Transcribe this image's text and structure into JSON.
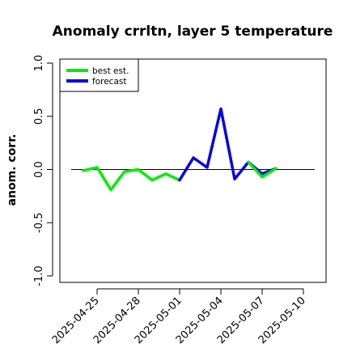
{
  "chart_data": {
    "type": "line",
    "title": "Anomaly crrltn, layer 5 temperature",
    "xlabel": "",
    "ylabel": "anom. corr.",
    "ylim": [
      -1.0,
      1.0
    ],
    "yticks": [
      "-1.0",
      "-0.5",
      "0.0",
      "0.5",
      "1.0"
    ],
    "ytick_values": [
      -1.0,
      -0.5,
      0.0,
      0.5,
      1.0
    ],
    "xticks": [
      "2025-04-25",
      "2025-04-28",
      "2025-05-01",
      "2025-05-04",
      "2025-05-07",
      "2025-05-10"
    ],
    "highlight_tick": "2025-05-01",
    "highlight_color": "#228B22",
    "reference_line": 0.0,
    "grid": false,
    "legend_position": "top-left",
    "series": [
      {
        "name": "best est.",
        "color": "#00ee00",
        "x": [
          "2025-04-24",
          "2025-04-25",
          "2025-04-26",
          "2025-04-27",
          "2025-04-28",
          "2025-04-29",
          "2025-04-30",
          "2025-05-01"
        ],
        "values": [
          -0.01,
          0.02,
          -0.19,
          -0.02,
          0.0,
          -0.1,
          -0.04,
          -0.1
        ]
      },
      {
        "name": "forecast",
        "color": "#0000ee",
        "x": [
          "2025-05-01",
          "2025-05-02",
          "2025-05-03",
          "2025-05-04",
          "2025-05-05",
          "2025-05-06",
          "2025-05-07",
          "2025-05-08"
        ],
        "values": [
          -0.1,
          0.11,
          0.02,
          0.57,
          -0.09,
          0.07,
          -0.04,
          0.01
        ]
      },
      {
        "name": "",
        "color": "#00ee00",
        "x": [
          "2025-05-06",
          "2025-05-07",
          "2025-05-08"
        ],
        "values": [
          0.07,
          -0.07,
          0.01
        ]
      }
    ]
  }
}
